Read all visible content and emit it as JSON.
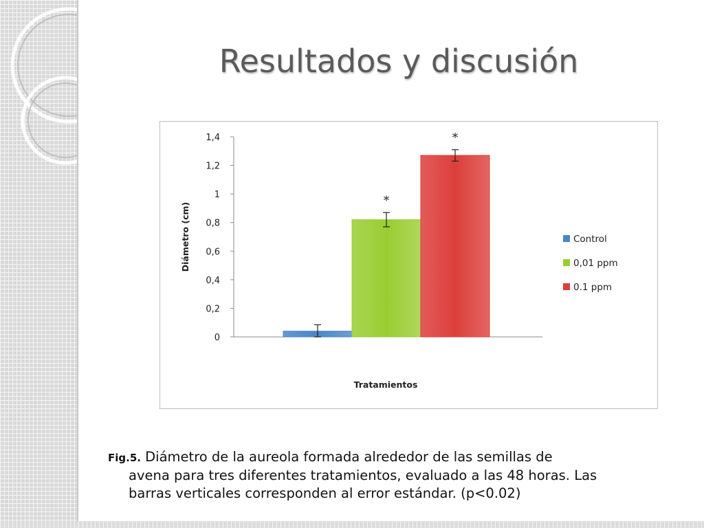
{
  "slide": {
    "title": "Resultados y discusión"
  },
  "colors": {
    "control": "#4a86c8",
    "ppm_001": "#9acd32",
    "ppm_01": "#dc3f3c",
    "title": "#5a5a5a"
  },
  "chart_data": {
    "type": "bar",
    "title": "",
    "xlabel": "Tratamientos",
    "ylabel": "Diámetro (cm)",
    "ylim": [
      0,
      1.4
    ],
    "yticks": [
      "0",
      "0,2",
      "0,4",
      "0,6",
      "0,8",
      "1",
      "1,2",
      "1,4"
    ],
    "ytick_values": [
      0,
      0.2,
      0.4,
      0.6,
      0.8,
      1.0,
      1.2,
      1.4
    ],
    "grid": false,
    "legend_position": "right",
    "series": [
      {
        "name": "Control",
        "value": 0.04,
        "error": 0.045,
        "annotation": "",
        "color": "#4a86c8"
      },
      {
        "name": "0,01 ppm",
        "value": 0.82,
        "error": 0.05,
        "annotation": "*",
        "color": "#9acd32"
      },
      {
        "name": "0.1 ppm",
        "value": 1.27,
        "error": 0.04,
        "annotation": "*",
        "color": "#dc3f3c"
      }
    ]
  },
  "caption": {
    "label": "Fig.5.",
    "line1": " Diámetro de la aureola formada alrededor de las semillas de",
    "line2": "avena para tres diferentes tratamientos, evaluado a las 48 horas. Las",
    "line3": "barras verticales corresponden al error estándar.  (p<0.02)"
  }
}
